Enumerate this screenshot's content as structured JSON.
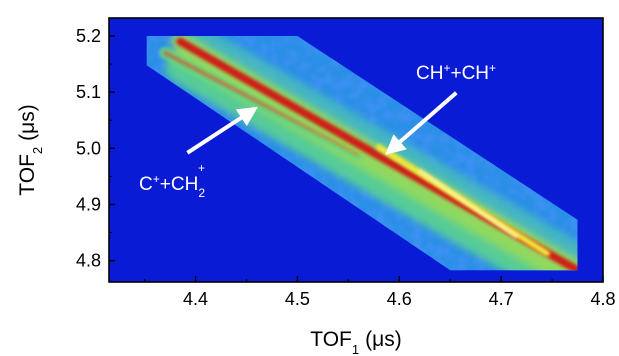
{
  "chart_data": {
    "type": "heatmap",
    "xlabel": {
      "main": "TOF",
      "sub": "1",
      "unit": "(μs)"
    },
    "ylabel": {
      "main": "TOF",
      "sub": "2",
      "unit": "(μs)"
    },
    "xlim": [
      4.315,
      4.8
    ],
    "ylim": [
      4.762,
      5.232
    ],
    "xticks": [
      4.4,
      4.5,
      4.6,
      4.7,
      4.8
    ],
    "yticks": [
      4.8,
      4.9,
      5.0,
      5.1,
      5.2
    ],
    "x_tick_labels": [
      "4.4",
      "4.5",
      "4.6",
      "4.7",
      "4.8"
    ],
    "y_tick_labels": [
      "4.8",
      "4.9",
      "5.0",
      "5.1",
      "5.2"
    ],
    "grid": false,
    "colormap": [
      "#0a1bd6",
      "#1e6ee8",
      "#3fb6e0",
      "#5fd78a",
      "#a6e04c",
      "#f0e83a",
      "#f07a2a",
      "#d01818",
      "#fff6b0"
    ],
    "background_color": "#0a1bd6",
    "populated_region": [
      [
        4.352,
        5.2
      ],
      [
        4.5,
        5.2
      ],
      [
        4.775,
        4.873
      ],
      [
        4.775,
        4.783
      ],
      [
        4.65,
        4.783
      ],
      [
        4.352,
        5.148
      ]
    ],
    "ridges": [
      {
        "label": {
          "a": "CH",
          "a_sup": "+",
          "plus": "+",
          "b": "CH",
          "b_sup": "+"
        },
        "from": [
          4.385,
          5.19
        ],
        "to": [
          4.775,
          4.783
        ],
        "peak_near": [
          4.62,
          4.96
        ]
      },
      {
        "label": {
          "a": "C",
          "a_sup": "+",
          "plus": "+",
          "b": "CH",
          "b_sub": "2",
          "b_sup": "+"
        },
        "from": [
          4.37,
          5.17
        ],
        "to": [
          4.56,
          4.99
        ],
        "peak_near": [
          4.47,
          5.08
        ]
      }
    ]
  }
}
